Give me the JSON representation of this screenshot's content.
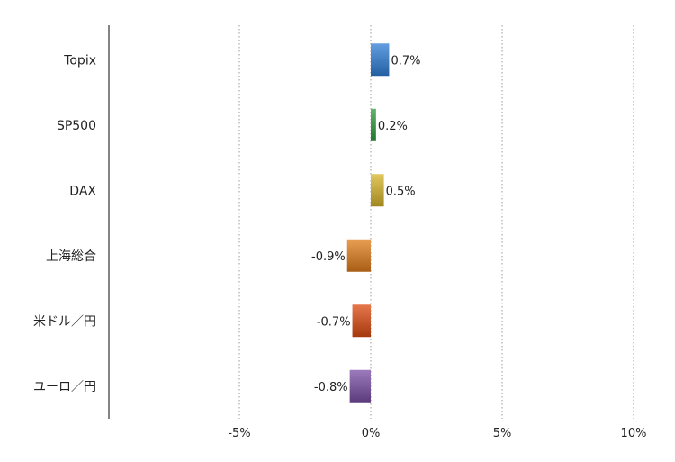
{
  "chart_data": {
    "type": "bar",
    "orientation": "horizontal",
    "title": "",
    "xlabel": "",
    "ylabel": "",
    "categories": [
      "Topix",
      "SP500",
      "DAX",
      "上海総合",
      "米ドル／円",
      "ユーロ／円"
    ],
    "values": [
      0.7,
      0.2,
      0.5,
      -0.9,
      -0.7,
      -0.8
    ],
    "value_labels": [
      "0.7%",
      "0.2%",
      "0.5%",
      "-0.9%",
      "-0.7%",
      "-0.8%"
    ],
    "colors": [
      "#2f7fd6",
      "#2e9a3a",
      "#d8b42a",
      "#e07d1a",
      "#dd4a12",
      "#7b4fa6"
    ],
    "xlim": [
      -10,
      10
    ],
    "xticks": [
      -5,
      0,
      5,
      10
    ],
    "xtick_labels": [
      "-5%",
      "0%",
      "5%",
      "10%"
    ],
    "grid": "vertical-dotted",
    "legend": "none"
  }
}
